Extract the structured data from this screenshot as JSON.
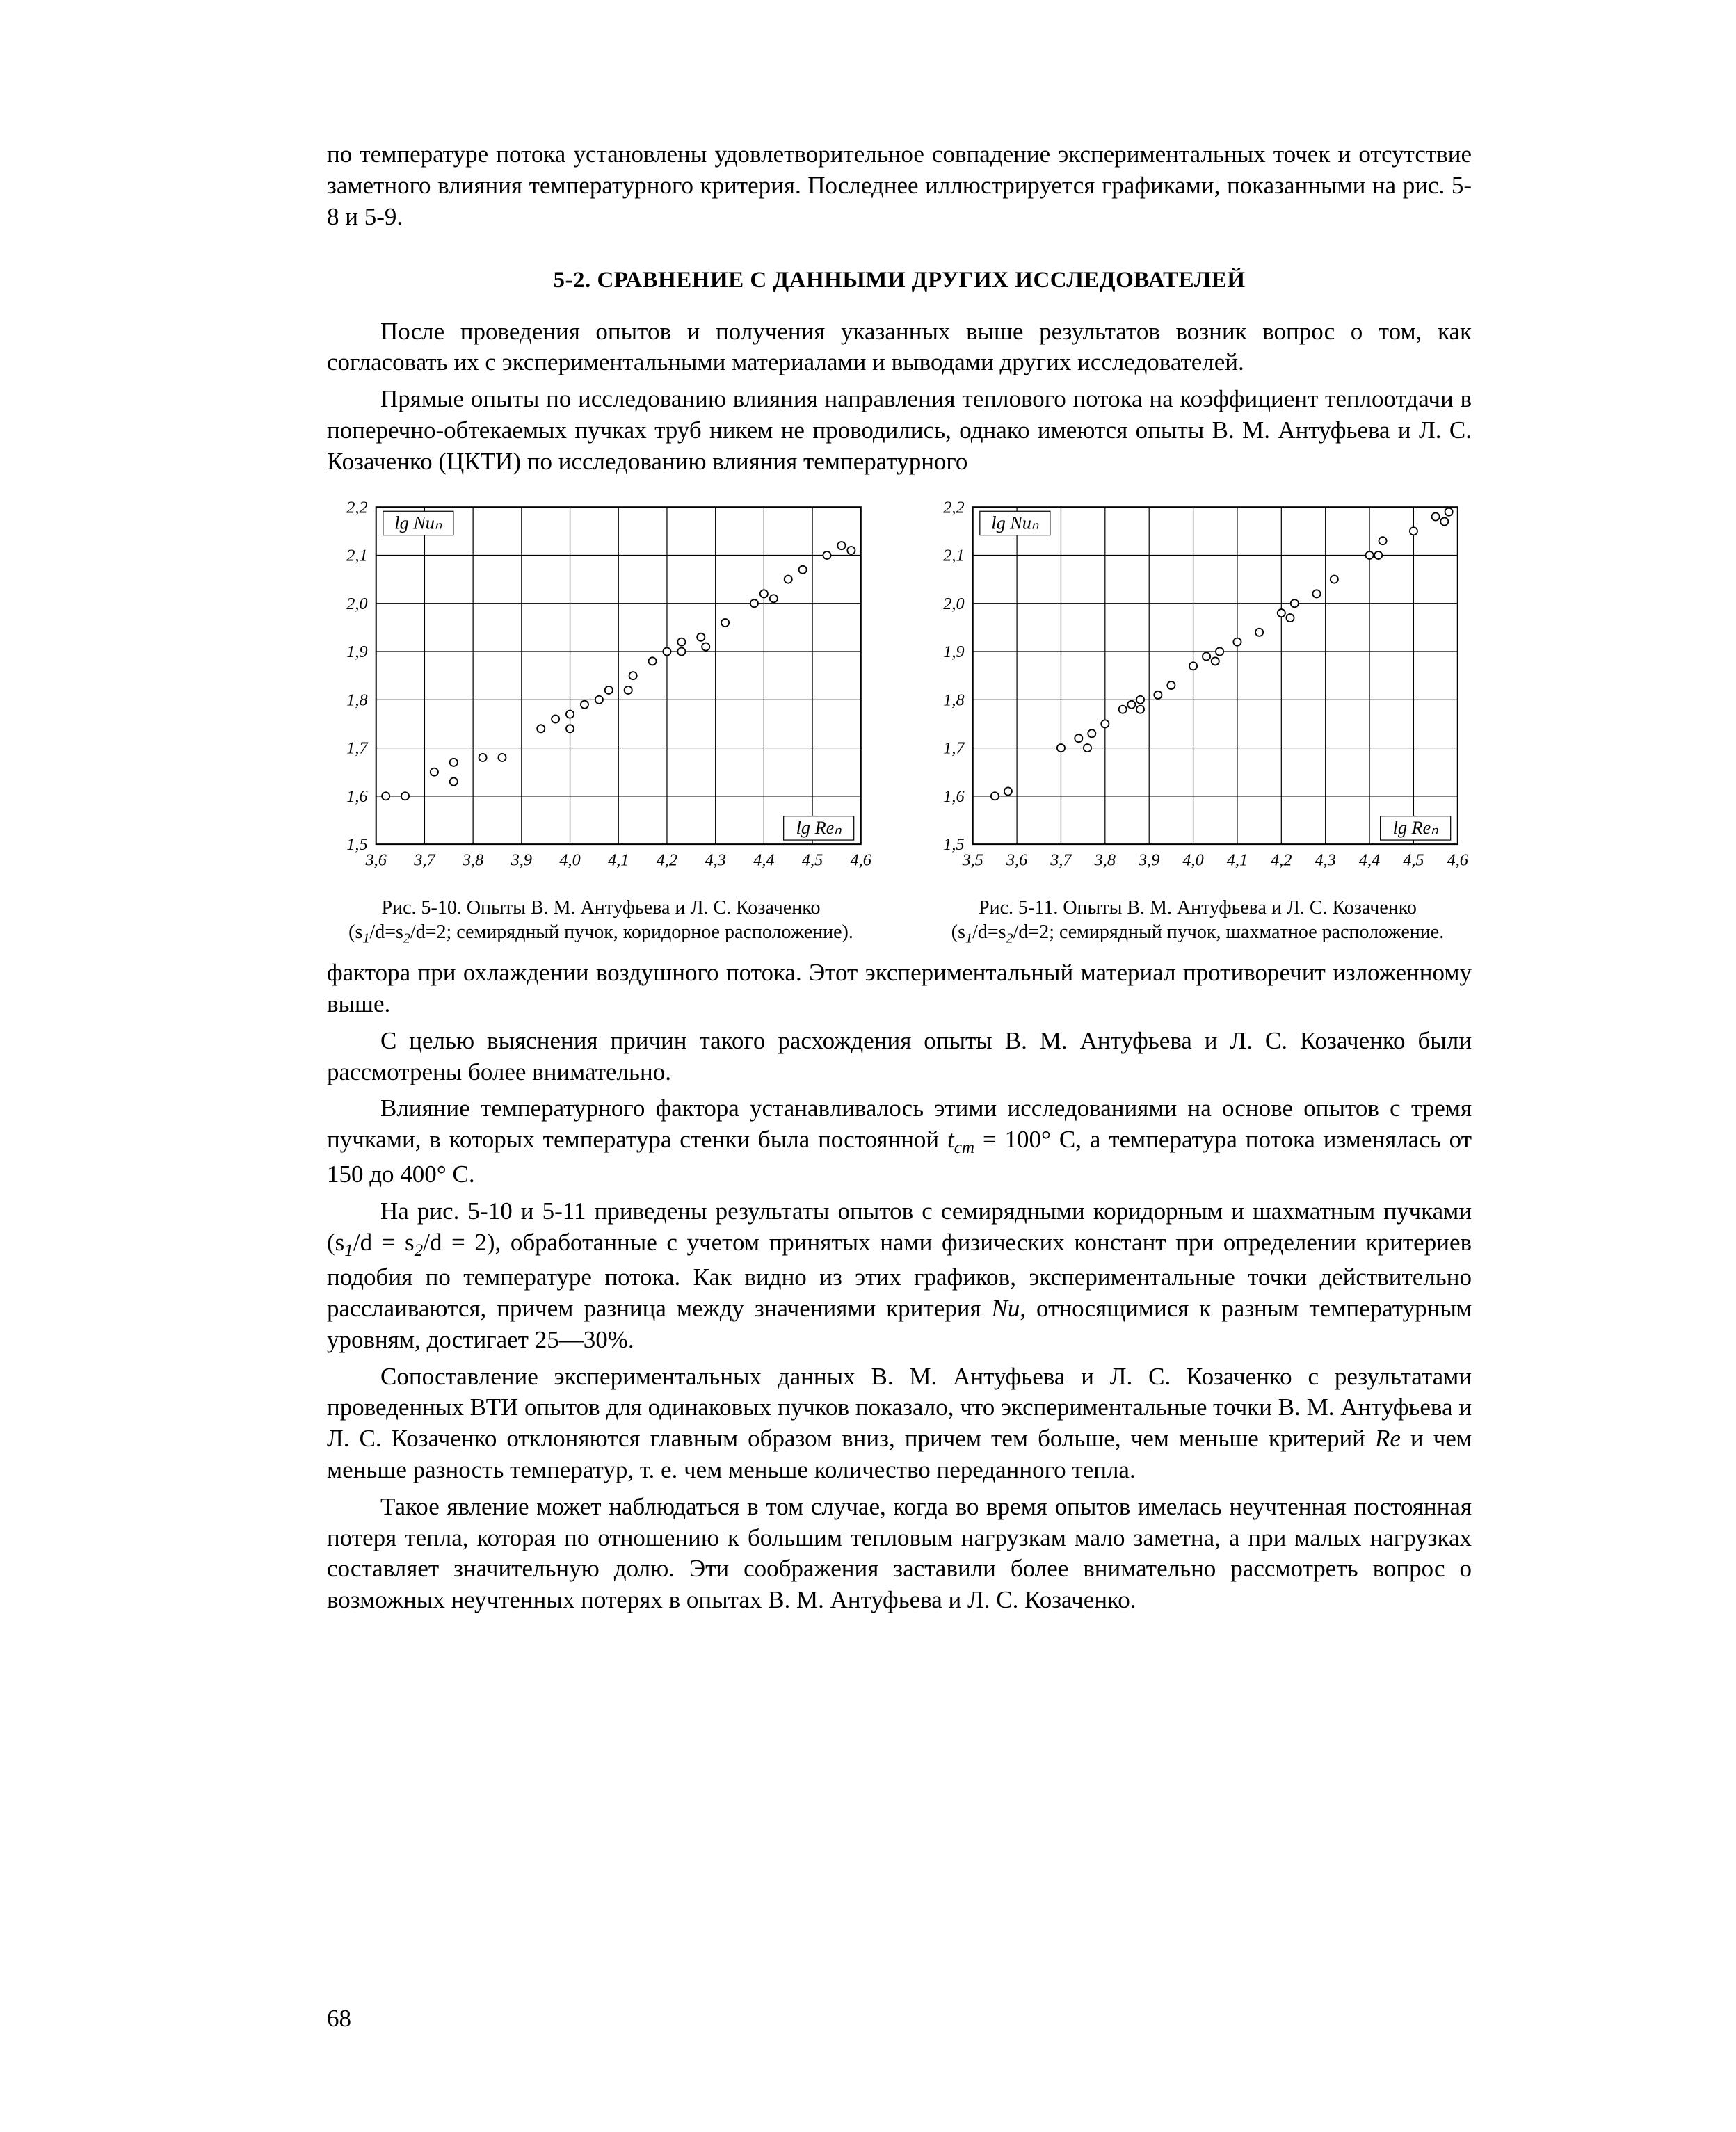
{
  "text": {
    "p1": "по температуре потока установлены удовлетворительное совпадение экспериментальных точек и отсутствие заметного влияния температурного критерия. Последнее иллюстрируется графиками, показанными на рис. 5-8 и 5-9.",
    "heading": "5-2. СРАВНЕНИЕ С ДАННЫМИ ДРУГИХ ИССЛЕДОВАТЕЛЕЙ",
    "p2": "После проведения опытов и получения указанных выше результатов возник вопрос о том, как согласовать их с экспериментальными материалами и выводами других исследователей.",
    "p3": "Прямые опыты по исследованию влияния направления теплового потока на коэффициент теплоотдачи в поперечно-обтекаемых пучках труб никем не проводились, однако имеются опыты В. М. Антуфьева и Л. С. Козаченко (ЦКТИ) по исследованию влияния температурного",
    "p4": "фактора при охлаждении воздушного потока. Этот экспериментальный материал противоречит изложенному выше.",
    "p5": "С целью выяснения причин такого расхождения опыты В. М. Антуфьева и Л. С. Козаченко были рассмотрены более внимательно.",
    "p6_a": "Влияние температурного фактора устанавливалось этими исследованиями на основе опытов с тремя пучками, в которых температура стенки была постоянной ",
    "p6_b": " = 100° С, а температура потока изменялась от 150 до 400° С.",
    "p7_a": "На рис. 5-10 и 5-11 приведены результаты опытов с семирядными коридорным и шахматным пучками ",
    "p7_b": " обработанные с учетом принятых нами физических констант при определении критериев подобия по температуре потока. Как видно из этих графиков, экспериментальные точки действительно расслаиваются, причем разница между значениями критерия ",
    "p7_c": ", относящимися к разным температурным уровням, достигает 25—30%.",
    "p8_a": "Сопоставление экспериментальных данных В. М. Антуфьева и Л. С. Козаченко с результатами проведенных ВТИ опытов для одинаковых пучков показало, что экспериментальные точки В. М. Антуфьева и Л. С. Козаченко отклоняются главным образом вниз, причем тем больше, чем меньше критерий ",
    "p8_b": " и чем меньше разность температур, т. е. чем меньше количество переданного тепла.",
    "p9": "Такое явление может наблюдаться в том случае, когда во время опытов имелась неучтенная постоянная потеря тепла, которая по отношению к большим тепловым нагрузкам мало заметна, а при малых нагрузках составляет значительную долю. Эти соображения заставили более внимательно рассмотреть вопрос о возможных неучтенных потерях в опытах В. М. Антуфьева и Л. С. Козаченко.",
    "t_cm": "t",
    "t_cm_sub": "ст",
    "s1d": "(s",
    "s1d_sub": "1",
    "s1d_mid": "/d = s",
    "s2d_sub": "2",
    "s1d_end": "/d = 2),",
    "nu_var": "Nu",
    "re_var": "Re",
    "page_num": "68"
  },
  "fig_left": {
    "type": "scatter",
    "caption_a": "Рис. 5-10. Опыты В. М. Антуфьева и Л. С. Козаченко (s",
    "caption_sub1": "1",
    "caption_mid": "/d=s",
    "caption_sub2": "2",
    "caption_b": "/d=2; семирядный пучок, коридорное расположение).",
    "xlabel_box": "lg Nuₙ",
    "ylabel_box": "lg Reₙ",
    "xlim": [
      3.6,
      4.6
    ],
    "ylim": [
      1.5,
      2.2
    ],
    "xticks": [
      "3,6",
      "3,7",
      "3,8",
      "3,9",
      "4,0",
      "4,1",
      "4,2",
      "4,3",
      "4,4",
      "4,5",
      "4,6"
    ],
    "yticks": [
      "1,5",
      "1,6",
      "1,7",
      "1,8",
      "1,9",
      "2,0",
      "2,1",
      "2,2"
    ],
    "grid_color": "#000000",
    "grid_width": 1.2,
    "border_width": 2.0,
    "background_color": "#ffffff",
    "marker_radius": 5.5,
    "marker_fill": "#ffffff",
    "marker_stroke": "#000000",
    "marker_stroke_width": 1.8,
    "tick_fontsize": 24,
    "axis_label_fontsize": 26,
    "points": [
      [
        3.62,
        1.6
      ],
      [
        3.66,
        1.6
      ],
      [
        3.72,
        1.65
      ],
      [
        3.76,
        1.67
      ],
      [
        3.76,
        1.63
      ],
      [
        3.82,
        1.68
      ],
      [
        3.86,
        1.68
      ],
      [
        3.94,
        1.74
      ],
      [
        3.97,
        1.76
      ],
      [
        4.0,
        1.77
      ],
      [
        4.0,
        1.74
      ],
      [
        4.03,
        1.79
      ],
      [
        4.06,
        1.8
      ],
      [
        4.08,
        1.82
      ],
      [
        4.13,
        1.85
      ],
      [
        4.12,
        1.82
      ],
      [
        4.17,
        1.88
      ],
      [
        4.2,
        1.9
      ],
      [
        4.23,
        1.92
      ],
      [
        4.23,
        1.9
      ],
      [
        4.27,
        1.93
      ],
      [
        4.28,
        1.91
      ],
      [
        4.32,
        1.96
      ],
      [
        4.38,
        2.0
      ],
      [
        4.4,
        2.02
      ],
      [
        4.42,
        2.01
      ],
      [
        4.45,
        2.05
      ],
      [
        4.48,
        2.07
      ],
      [
        4.53,
        2.1
      ],
      [
        4.56,
        2.12
      ],
      [
        4.58,
        2.11
      ]
    ]
  },
  "fig_right": {
    "type": "scatter",
    "caption_a": "Рис. 5-11. Опыты В. М. Антуфьева и Л. С. Козаченко (s",
    "caption_sub1": "1",
    "caption_mid": "/d=s",
    "caption_sub2": "2",
    "caption_b": "/d=2; семирядный пучок, шахматное расположение.",
    "xlabel_box": "lg Nuₙ",
    "ylabel_box": "lg Reₙ",
    "xlim": [
      3.5,
      4.6
    ],
    "ylim": [
      1.5,
      2.2
    ],
    "xticks": [
      "3,5",
      "3,6",
      "3,7",
      "3,8",
      "3,9",
      "4,0",
      "4,1",
      "4,2",
      "4,3",
      "4,4",
      "4,5",
      "4,6"
    ],
    "yticks": [
      "1,5",
      "1,6",
      "1,7",
      "1,8",
      "1,9",
      "2,0",
      "2,1",
      "2,2"
    ],
    "grid_color": "#000000",
    "grid_width": 1.2,
    "border_width": 2.0,
    "background_color": "#ffffff",
    "marker_radius": 5.5,
    "marker_fill": "#ffffff",
    "marker_stroke": "#000000",
    "marker_stroke_width": 1.8,
    "tick_fontsize": 24,
    "axis_label_fontsize": 26,
    "points": [
      [
        3.55,
        1.6
      ],
      [
        3.58,
        1.61
      ],
      [
        3.7,
        1.7
      ],
      [
        3.74,
        1.72
      ],
      [
        3.77,
        1.73
      ],
      [
        3.76,
        1.7
      ],
      [
        3.8,
        1.75
      ],
      [
        3.84,
        1.78
      ],
      [
        3.86,
        1.79
      ],
      [
        3.88,
        1.8
      ],
      [
        3.88,
        1.78
      ],
      [
        3.92,
        1.81
      ],
      [
        3.95,
        1.83
      ],
      [
        4.0,
        1.87
      ],
      [
        4.03,
        1.89
      ],
      [
        4.06,
        1.9
      ],
      [
        4.05,
        1.88
      ],
      [
        4.1,
        1.92
      ],
      [
        4.15,
        1.94
      ],
      [
        4.2,
        1.98
      ],
      [
        4.23,
        2.0
      ],
      [
        4.22,
        1.97
      ],
      [
        4.28,
        2.02
      ],
      [
        4.32,
        2.05
      ],
      [
        4.4,
        2.1
      ],
      [
        4.43,
        2.13
      ],
      [
        4.42,
        2.1
      ],
      [
        4.5,
        2.15
      ],
      [
        4.55,
        2.18
      ],
      [
        4.58,
        2.19
      ],
      [
        4.57,
        2.17
      ]
    ]
  }
}
